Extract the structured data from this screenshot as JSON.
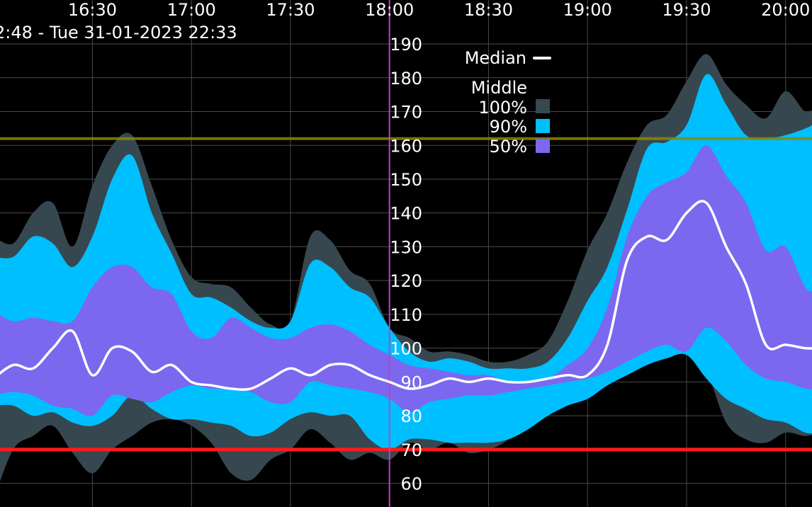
{
  "chart_data": {
    "type": "area",
    "subtitle": "2:48 - Tue 31-01-2023 22:33",
    "x_ticks": [
      "16:30",
      "17:00",
      "17:30",
      "18:00",
      "18:30",
      "19:00",
      "19:30",
      "20:00"
    ],
    "y_ticks": [
      60,
      70,
      80,
      90,
      100,
      110,
      120,
      130,
      140,
      150,
      160,
      170,
      180,
      190
    ],
    "xlim": [
      "16:02",
      "20:08"
    ],
    "ylim": [
      53,
      203
    ],
    "grid": true,
    "legend": {
      "position": "top-center",
      "median_label": "Median",
      "group_label": "Middle",
      "entries": [
        {
          "label": "100%",
          "color": "#37474f"
        },
        {
          "label": "90%",
          "color": "#00bfff"
        },
        {
          "label": "50%",
          "color": "#7b68ee"
        }
      ]
    },
    "reference_lines": [
      {
        "value": 70,
        "color": "#ff1a1a"
      },
      {
        "value": 162,
        "color": "#8a8a00"
      }
    ],
    "now_marker": "18:00",
    "colors": {
      "median": "#ffffff",
      "now_marker": "#c040c0"
    },
    "x": [
      "16:00",
      "16:06",
      "16:12",
      "16:18",
      "16:24",
      "16:30",
      "16:36",
      "16:42",
      "16:48",
      "16:54",
      "17:00",
      "17:06",
      "17:12",
      "17:18",
      "17:24",
      "17:30",
      "17:36",
      "17:42",
      "17:48",
      "17:54",
      "18:00",
      "18:06",
      "18:12",
      "18:18",
      "18:24",
      "18:30",
      "18:36",
      "18:42",
      "18:48",
      "18:54",
      "19:00",
      "19:06",
      "19:12",
      "19:18",
      "19:24",
      "19:30",
      "19:36",
      "19:42",
      "19:48",
      "19:54",
      "20:00",
      "20:06",
      "20:10"
    ],
    "series": [
      {
        "name": "100%",
        "upper": [
          133,
          131,
          140,
          143,
          130,
          148,
          160,
          163,
          148,
          132,
          121,
          119,
          118,
          112,
          107,
          108,
          133,
          132,
          123,
          119,
          106,
          103,
          99,
          99,
          98,
          96,
          96,
          98,
          102,
          114,
          129,
          140,
          155,
          166,
          169,
          179,
          187,
          178,
          172,
          168,
          176,
          170,
          172
        ],
        "lower": [
          55,
          70,
          74,
          77,
          69,
          63,
          70,
          74,
          78,
          79,
          77,
          72,
          63,
          61,
          67,
          70,
          76,
          72,
          67,
          69,
          67,
          72,
          70,
          72,
          69,
          70,
          73,
          80,
          84,
          86,
          88,
          92,
          95,
          97,
          99,
          98,
          93,
          78,
          73,
          72,
          75,
          74,
          75
        ]
      },
      {
        "name": "90%",
        "upper": [
          127,
          127,
          133,
          131,
          124,
          133,
          150,
          157,
          140,
          128,
          116,
          115,
          112,
          108,
          106,
          108,
          125,
          124,
          118,
          115,
          106,
          99,
          96,
          97,
          96,
          94,
          94,
          94,
          96,
          103,
          114,
          124,
          141,
          159,
          161,
          166,
          181,
          172,
          163,
          162,
          163,
          165,
          167
        ]
      },
      {
        "name": "50%",
        "upper": [
          111,
          108,
          109,
          108,
          108,
          118,
          124,
          124,
          118,
          116,
          105,
          103,
          109,
          106,
          103,
          103,
          106,
          107,
          105,
          101,
          98,
          95,
          94,
          93,
          92,
          92,
          90,
          90,
          91,
          95,
          100,
          112,
          133,
          145,
          149,
          152,
          160,
          151,
          143,
          129,
          130,
          118,
          117
        ]
      },
      {
        "name": "90% lower",
        "lower": [
          83,
          83,
          80,
          81,
          78,
          77,
          80,
          86,
          82,
          79,
          79,
          78,
          77,
          74,
          75,
          79,
          81,
          80,
          80,
          73,
          70,
          73,
          73,
          72,
          72,
          72,
          73,
          76,
          80,
          83,
          85,
          89,
          92,
          95,
          97,
          98,
          91,
          85,
          82,
          79,
          78,
          75,
          75
        ]
      },
      {
        "name": "50% lower",
        "lower": [
          86,
          87,
          86,
          83,
          82,
          80,
          86,
          85,
          84,
          87,
          89,
          88,
          88,
          87,
          84,
          84,
          90,
          89,
          88,
          87,
          85,
          81,
          84,
          85,
          86,
          86,
          87,
          88,
          89,
          90,
          91,
          93,
          96,
          99,
          101,
          99,
          106,
          102,
          95,
          91,
          90,
          88,
          88
        ]
      },
      {
        "name": "Median",
        "values": [
          91,
          95,
          94,
          100,
          105,
          92,
          100,
          99,
          93,
          95,
          90,
          89,
          88,
          88,
          91,
          94,
          92,
          95,
          95,
          92,
          90,
          88,
          89,
          91,
          90,
          91,
          90,
          90,
          91,
          92,
          92,
          101,
          126,
          133,
          132,
          140,
          143,
          130,
          119,
          101,
          101,
          100,
          100
        ]
      }
    ]
  }
}
